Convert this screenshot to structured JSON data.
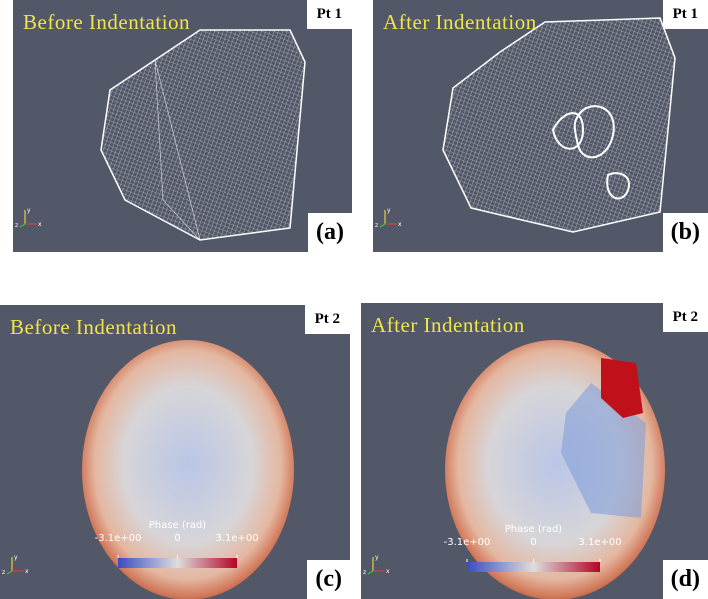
{
  "triad": {
    "x": "x",
    "y": "y",
    "z": "z"
  },
  "panels": [
    {
      "title": "Before Indentation",
      "point": "Pt 1",
      "label": "(a)"
    },
    {
      "title": "After Indentation",
      "point": "Pt 1",
      "label": "(b)"
    },
    {
      "title": "Before Indentation",
      "point": "Pt 2",
      "label": "(c)",
      "colorbar": {
        "title": "Phase (rad)",
        "ticks": [
          "-3.1e+00",
          "0",
          "3.1e+00"
        ]
      }
    },
    {
      "title": "After Indentation",
      "point": "Pt 2",
      "label": "(d)",
      "colorbar": {
        "title": "Phase (rad)",
        "ticks": [
          "-3.1e+00",
          "0",
          "3.1e+00"
        ]
      }
    }
  ]
}
